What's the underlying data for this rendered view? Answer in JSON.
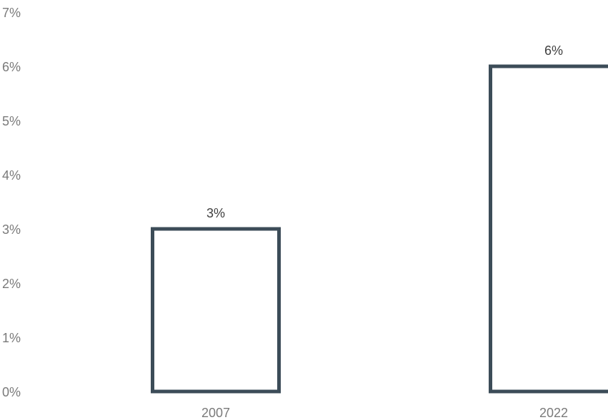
{
  "chart_data": {
    "type": "bar",
    "categories": [
      "2007",
      "2022"
    ],
    "values": [
      3,
      6
    ],
    "data_labels": [
      "3%",
      "6%"
    ],
    "yticks": [
      "0%",
      "1%",
      "2%",
      "3%",
      "4%",
      "5%",
      "6%",
      "7%"
    ],
    "ylim": [
      0,
      7
    ],
    "grid": false,
    "bar_style": "outline",
    "bar_color": "#3c4c58"
  }
}
